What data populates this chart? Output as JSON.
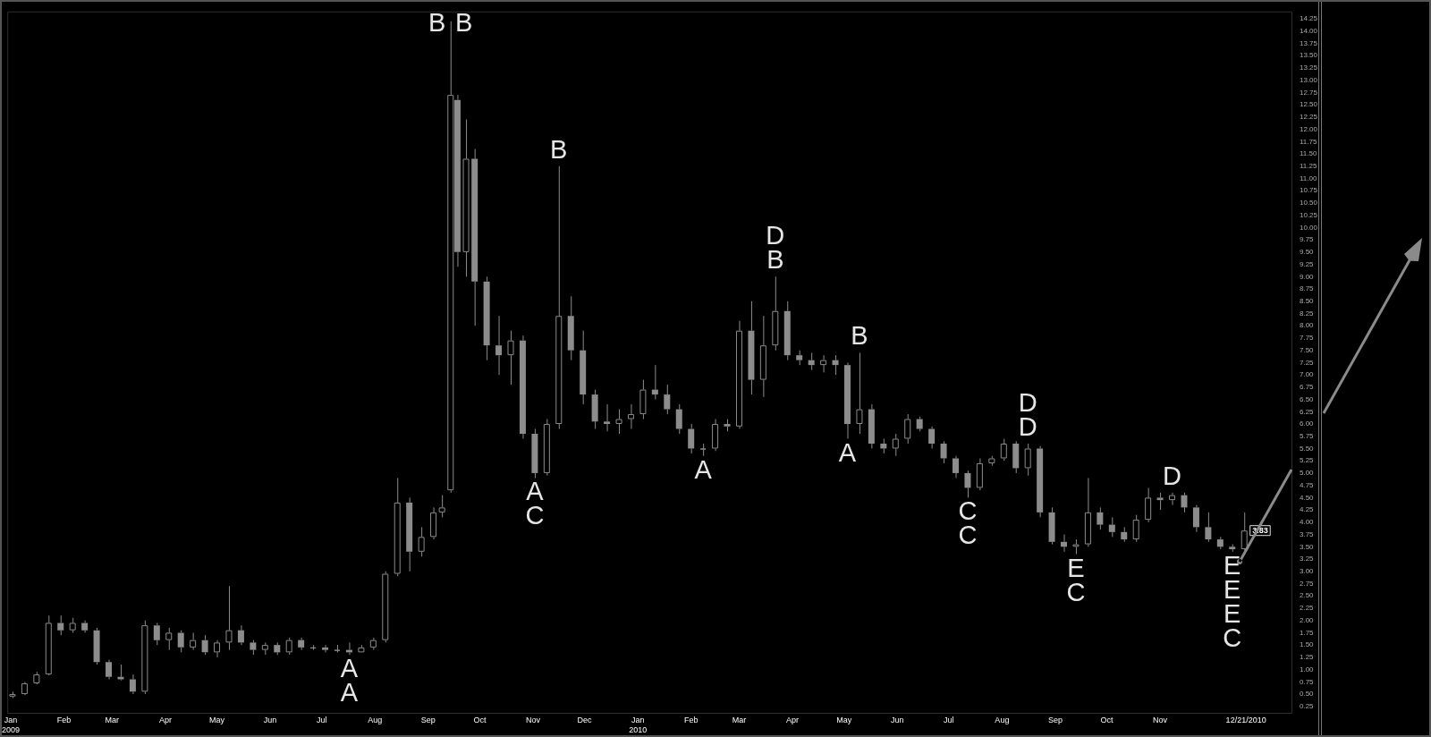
{
  "chart_data": {
    "type": "candlestick",
    "color": "#8c8c8c",
    "grid": false,
    "legend": false,
    "xlim": [
      "2008-12-30",
      "2011-01-17"
    ],
    "xticks": [
      {
        "value": "2009-01-01",
        "label": "Jan\n2009"
      },
      {
        "value": "2009-02-01",
        "label": "Feb"
      },
      {
        "value": "2009-03-01",
        "label": "Mar"
      },
      {
        "value": "2009-04-01",
        "label": "Apr"
      },
      {
        "value": "2009-05-01",
        "label": "May"
      },
      {
        "value": "2009-06-01",
        "label": "Jun"
      },
      {
        "value": "2009-07-01",
        "label": "Jul"
      },
      {
        "value": "2009-08-01",
        "label": "Aug"
      },
      {
        "value": "2009-09-01",
        "label": "Sep"
      },
      {
        "value": "2009-10-01",
        "label": "Oct"
      },
      {
        "value": "2009-11-01",
        "label": "Nov"
      },
      {
        "value": "2009-12-01",
        "label": "Dec"
      },
      {
        "value": "2010-01-01",
        "label": "Jan\n2010"
      },
      {
        "value": "2010-02-01",
        "label": "Feb"
      },
      {
        "value": "2010-03-01",
        "label": "Mar"
      },
      {
        "value": "2010-04-01",
        "label": "Apr"
      },
      {
        "value": "2010-05-01",
        "label": "May"
      },
      {
        "value": "2010-06-01",
        "label": "Jun"
      },
      {
        "value": "2010-07-01",
        "label": "Jul"
      },
      {
        "value": "2010-08-01",
        "label": "Aug"
      },
      {
        "value": "2010-09-01",
        "label": "Sep"
      },
      {
        "value": "2010-10-01",
        "label": "Oct"
      },
      {
        "value": "2010-11-01",
        "label": "Nov"
      },
      {
        "value": "2010-12-21",
        "label": "12/21/2010"
      }
    ],
    "ylim": [
      0.1,
      14.4
    ],
    "yticks": [
      {
        "value": 0.25,
        "label": "0.25"
      },
      {
        "value": 0.5,
        "label": "0.50"
      },
      {
        "value": 0.75,
        "label": "0.75"
      },
      {
        "value": 1,
        "label": "1.00"
      },
      {
        "value": 1.25,
        "label": "1.25"
      },
      {
        "value": 1.5,
        "label": "1.50"
      },
      {
        "value": 1.75,
        "label": "1.75"
      },
      {
        "value": 2,
        "label": "2.00"
      },
      {
        "value": 2.25,
        "label": "2.25"
      },
      {
        "value": 2.5,
        "label": "2.50"
      },
      {
        "value": 2.75,
        "label": "2.75"
      },
      {
        "value": 3,
        "label": "3.00"
      },
      {
        "value": 3.25,
        "label": "3.25"
      },
      {
        "value": 3.5,
        "label": "3.50"
      },
      {
        "value": 3.75,
        "label": "3.75"
      },
      {
        "value": 4,
        "label": "4.00"
      },
      {
        "value": 4.25,
        "label": "4.25"
      },
      {
        "value": 4.5,
        "label": "4.50"
      },
      {
        "value": 4.75,
        "label": "4.75"
      },
      {
        "value": 5,
        "label": "5.00"
      },
      {
        "value": 5.25,
        "label": "5.25"
      },
      {
        "value": 5.5,
        "label": "5.50"
      },
      {
        "value": 5.75,
        "label": "5.75"
      },
      {
        "value": 6,
        "label": "6.00"
      },
      {
        "value": 6.25,
        "label": "6.25"
      },
      {
        "value": 6.5,
        "label": "6.50"
      },
      {
        "value": 6.75,
        "label": "6.75"
      },
      {
        "value": 7,
        "label": "7.00"
      },
      {
        "value": 7.25,
        "label": "7.25"
      },
      {
        "value": 7.5,
        "label": "7.50"
      },
      {
        "value": 7.75,
        "label": "7.75"
      },
      {
        "value": 8,
        "label": "8.00"
      },
      {
        "value": 8.25,
        "label": "8.25"
      },
      {
        "value": 8.5,
        "label": "8.50"
      },
      {
        "value": 8.75,
        "label": "8.75"
      },
      {
        "value": 9,
        "label": "9.00"
      },
      {
        "value": 9.25,
        "label": "9.25"
      },
      {
        "value": 9.5,
        "label": "9.50"
      },
      {
        "value": 9.75,
        "label": "9.75"
      },
      {
        "value": 10,
        "label": "10.00"
      },
      {
        "value": 10.25,
        "label": "10.25"
      },
      {
        "value": 10.5,
        "label": "10.50"
      },
      {
        "value": 10.75,
        "label": "10.75"
      },
      {
        "value": 11,
        "label": "11.00"
      },
      {
        "value": 11.25,
        "label": "11.25"
      },
      {
        "value": 11.5,
        "label": "11.50"
      },
      {
        "value": 11.75,
        "label": "11.75"
      },
      {
        "value": 12,
        "label": "12.00"
      },
      {
        "value": 12.25,
        "label": "12.25"
      },
      {
        "value": 12.5,
        "label": "12.50"
      },
      {
        "value": 12.75,
        "label": "12.75"
      },
      {
        "value": 13,
        "label": "13.00"
      },
      {
        "value": 13.25,
        "label": "13.25"
      },
      {
        "value": 13.5,
        "label": "13.50"
      },
      {
        "value": 13.75,
        "label": "13.75"
      },
      {
        "value": 14,
        "label": "14.00"
      },
      {
        "value": 14.25,
        "label": "14.25"
      }
    ],
    "x": [
      "2009-01-02",
      "2009-01-09",
      "2009-01-16",
      "2009-01-23",
      "2009-01-30",
      "2009-02-06",
      "2009-02-13",
      "2009-02-20",
      "2009-02-27",
      "2009-03-06",
      "2009-03-13",
      "2009-03-20",
      "2009-03-27",
      "2009-04-03",
      "2009-04-10",
      "2009-04-17",
      "2009-04-24",
      "2009-05-01",
      "2009-05-08",
      "2009-05-15",
      "2009-05-22",
      "2009-05-29",
      "2009-06-05",
      "2009-06-12",
      "2009-06-19",
      "2009-06-26",
      "2009-07-03",
      "2009-07-10",
      "2009-07-17",
      "2009-07-24",
      "2009-07-31",
      "2009-08-07",
      "2009-08-14",
      "2009-08-21",
      "2009-08-28",
      "2009-09-04",
      "2009-09-09",
      "2009-09-14",
      "2009-09-18",
      "2009-09-23",
      "2009-09-28",
      "2009-10-05",
      "2009-10-12",
      "2009-10-19",
      "2009-10-26",
      "2009-11-02",
      "2009-11-09",
      "2009-11-16",
      "2009-11-23",
      "2009-11-30",
      "2009-12-07",
      "2009-12-14",
      "2009-12-21",
      "2009-12-28",
      "2010-01-04",
      "2010-01-11",
      "2010-01-18",
      "2010-01-25",
      "2010-02-01",
      "2010-02-08",
      "2010-02-15",
      "2010-02-22",
      "2010-03-01",
      "2010-03-08",
      "2010-03-15",
      "2010-03-22",
      "2010-03-29",
      "2010-04-05",
      "2010-04-12",
      "2010-04-19",
      "2010-04-26",
      "2010-05-03",
      "2010-05-10",
      "2010-05-17",
      "2010-05-24",
      "2010-05-31",
      "2010-06-07",
      "2010-06-14",
      "2010-06-21",
      "2010-06-28",
      "2010-07-05",
      "2010-07-12",
      "2010-07-19",
      "2010-07-26",
      "2010-08-02",
      "2010-08-09",
      "2010-08-16",
      "2010-08-23",
      "2010-08-30",
      "2010-09-06",
      "2010-09-13",
      "2010-09-20",
      "2010-09-27",
      "2010-10-04",
      "2010-10-11",
      "2010-10-18",
      "2010-10-25",
      "2010-11-01",
      "2010-11-08",
      "2010-11-15",
      "2010-11-22",
      "2010-11-29",
      "2010-12-06",
      "2010-12-13",
      "2010-12-20"
    ],
    "ohlc": [
      [
        0.45,
        0.55,
        0.42,
        0.5
      ],
      [
        0.5,
        0.75,
        0.48,
        0.72
      ],
      [
        0.72,
        0.95,
        0.7,
        0.9
      ],
      [
        0.9,
        2.1,
        0.88,
        1.95
      ],
      [
        1.95,
        2.1,
        1.7,
        1.8
      ],
      [
        1.8,
        2.05,
        1.75,
        1.95
      ],
      [
        1.95,
        2,
        1.75,
        1.8
      ],
      [
        1.8,
        1.85,
        1.1,
        1.15
      ],
      [
        1.15,
        1.2,
        0.8,
        0.85
      ],
      [
        0.85,
        1.1,
        0.78,
        0.8
      ],
      [
        0.8,
        0.9,
        0.5,
        0.55
      ],
      [
        0.55,
        2,
        0.5,
        1.9
      ],
      [
        1.9,
        1.95,
        1.5,
        1.6
      ],
      [
        1.6,
        1.85,
        1.4,
        1.75
      ],
      [
        1.75,
        1.8,
        1.35,
        1.45
      ],
      [
        1.45,
        1.75,
        1.4,
        1.6
      ],
      [
        1.6,
        1.7,
        1.3,
        1.35
      ],
      [
        1.35,
        1.6,
        1.25,
        1.55
      ],
      [
        1.55,
        2.7,
        1.4,
        1.8
      ],
      [
        1.8,
        1.9,
        1.5,
        1.55
      ],
      [
        1.55,
        1.6,
        1.3,
        1.4
      ],
      [
        1.4,
        1.55,
        1.3,
        1.5
      ],
      [
        1.5,
        1.55,
        1.3,
        1.35
      ],
      [
        1.35,
        1.65,
        1.3,
        1.6
      ],
      [
        1.6,
        1.65,
        1.4,
        1.45
      ],
      [
        1.45,
        1.5,
        1.4,
        1.45
      ],
      [
        1.45,
        1.5,
        1.35,
        1.4
      ],
      [
        1.4,
        1.5,
        1.35,
        1.4
      ],
      [
        1.4,
        1.55,
        1.3,
        1.35
      ],
      [
        1.35,
        1.5,
        1.35,
        1.45
      ],
      [
        1.45,
        1.65,
        1.4,
        1.6
      ],
      [
        1.6,
        3,
        1.55,
        2.95
      ],
      [
        2.95,
        4.9,
        2.9,
        4.4
      ],
      [
        4.4,
        4.5,
        3,
        3.4
      ],
      [
        3.4,
        3.9,
        3.3,
        3.7
      ],
      [
        3.7,
        4.3,
        3.65,
        4.2
      ],
      [
        4.2,
        4.55,
        4.1,
        4.3
      ],
      [
        4.65,
        14.2,
        4.6,
        12.7
      ],
      [
        12.6,
        12.7,
        9.2,
        9.5
      ],
      [
        9.5,
        12.2,
        9,
        11.4
      ],
      [
        11.4,
        11.6,
        8,
        8.9
      ],
      [
        8.9,
        9,
        7.3,
        7.6
      ],
      [
        7.6,
        8.2,
        7,
        7.4
      ],
      [
        7.4,
        7.9,
        6.8,
        7.7
      ],
      [
        7.7,
        7.8,
        5.7,
        5.8
      ],
      [
        5.8,
        5.9,
        4.9,
        5
      ],
      [
        5,
        6.1,
        4.95,
        6
      ],
      [
        6,
        11.25,
        5.9,
        8.2
      ],
      [
        8.2,
        8.6,
        7.3,
        7.5
      ],
      [
        7.5,
        7.9,
        6.4,
        6.6
      ],
      [
        6.6,
        6.7,
        5.9,
        6.05
      ],
      [
        6.05,
        6.4,
        5.85,
        6
      ],
      [
        6,
        6.3,
        5.8,
        6.1
      ],
      [
        6.1,
        6.4,
        5.9,
        6.2
      ],
      [
        6.2,
        6.9,
        6.1,
        6.7
      ],
      [
        6.7,
        7.2,
        6.5,
        6.6
      ],
      [
        6.6,
        6.8,
        6.2,
        6.3
      ],
      [
        6.3,
        6.4,
        5.8,
        5.9
      ],
      [
        5.9,
        6,
        5.4,
        5.5
      ],
      [
        5.5,
        5.6,
        5.35,
        5.5
      ],
      [
        5.5,
        6.1,
        5.45,
        6
      ],
      [
        6,
        6.1,
        5.85,
        5.95
      ],
      [
        5.95,
        8.1,
        5.9,
        7.9
      ],
      [
        7.9,
        8.5,
        6.6,
        6.9
      ],
      [
        6.9,
        8.2,
        6.55,
        7.6
      ],
      [
        7.6,
        9,
        7.5,
        8.3
      ],
      [
        8.3,
        8.5,
        7.3,
        7.4
      ],
      [
        7.4,
        7.5,
        7.2,
        7.3
      ],
      [
        7.3,
        7.45,
        7.1,
        7.2
      ],
      [
        7.2,
        7.4,
        7.05,
        7.3
      ],
      [
        7.3,
        7.4,
        7,
        7.2
      ],
      [
        7.2,
        7.25,
        5.7,
        6
      ],
      [
        6,
        7.45,
        5.8,
        6.3
      ],
      [
        6.3,
        6.4,
        5.5,
        5.6
      ],
      [
        5.6,
        5.7,
        5.4,
        5.5
      ],
      [
        5.5,
        5.8,
        5.35,
        5.7
      ],
      [
        5.7,
        6.2,
        5.6,
        6.1
      ],
      [
        6.1,
        6.15,
        5.85,
        5.9
      ],
      [
        5.9,
        5.95,
        5.5,
        5.6
      ],
      [
        5.6,
        5.65,
        5.2,
        5.3
      ],
      [
        5.3,
        5.35,
        4.9,
        5
      ],
      [
        5,
        5.05,
        4.5,
        4.7
      ],
      [
        4.7,
        5.3,
        4.65,
        5.2
      ],
      [
        5.2,
        5.35,
        5.15,
        5.3
      ],
      [
        5.3,
        5.7,
        5.25,
        5.6
      ],
      [
        5.6,
        5.65,
        5,
        5.1
      ],
      [
        5.1,
        5.6,
        4.95,
        5.5
      ],
      [
        5.5,
        5.55,
        4.1,
        4.2
      ],
      [
        4.2,
        4.3,
        3.55,
        3.6
      ],
      [
        3.6,
        3.75,
        3.4,
        3.5
      ],
      [
        3.5,
        3.65,
        3.35,
        3.55
      ],
      [
        3.55,
        4.9,
        3.5,
        4.2
      ],
      [
        4.2,
        4.3,
        3.85,
        3.95
      ],
      [
        3.95,
        4.1,
        3.7,
        3.8
      ],
      [
        3.8,
        3.9,
        3.6,
        3.65
      ],
      [
        3.65,
        4.15,
        3.6,
        4.05
      ],
      [
        4.05,
        4.7,
        4,
        4.5
      ],
      [
        4.5,
        4.6,
        4.25,
        4.45
      ],
      [
        4.45,
        4.6,
        4.35,
        4.55
      ],
      [
        4.55,
        4.6,
        4.2,
        4.3
      ],
      [
        4.3,
        4.35,
        3.8,
        3.9
      ],
      [
        3.9,
        4.2,
        3.6,
        3.65
      ],
      [
        3.65,
        3.7,
        3.45,
        3.5
      ],
      [
        3.5,
        3.55,
        3.4,
        3.45
      ],
      [
        3.45,
        4.2,
        3.42,
        3.83
      ]
    ],
    "annotations": [
      {
        "text": "A",
        "x": "2009-07-17",
        "y": 1.3
      },
      {
        "text": "A",
        "x": "2009-07-17",
        "y": 1.3
      },
      {
        "text": "B",
        "x": "2009-09-14",
        "y": 14.2
      },
      {
        "text": "B",
        "x": "2009-09-14",
        "y": 14.2
      },
      {
        "text": "B",
        "x": "2009-11-16",
        "y": 11.25
      },
      {
        "text": "A",
        "x": "2009-11-02",
        "y": 4.9
      },
      {
        "text": "C",
        "x": "2009-11-02",
        "y": 4.9
      },
      {
        "text": "A",
        "x": "2010-02-08",
        "y": 5.35
      },
      {
        "text": "B",
        "x": "2010-03-22",
        "y": 9
      },
      {
        "text": "D",
        "x": "2010-03-22",
        "y": 9
      },
      {
        "text": "B",
        "x": "2010-05-10",
        "y": 7.45
      },
      {
        "text": "A",
        "x": "2010-05-03",
        "y": 5.7
      },
      {
        "text": "C",
        "x": "2010-07-12",
        "y": 4.5
      },
      {
        "text": "C",
        "x": "2010-07-12",
        "y": 4.5
      },
      {
        "text": "D",
        "x": "2010-08-16",
        "y": 5.6
      },
      {
        "text": "D",
        "x": "2010-08-16",
        "y": 5.6
      },
      {
        "text": "E",
        "x": "2010-09-13",
        "y": 3.35
      },
      {
        "text": "C",
        "x": "2010-09-13",
        "y": 3.35
      },
      {
        "text": "D",
        "x": "2010-11-08",
        "y": 4.6
      },
      {
        "text": "E",
        "x": "2010-12-13",
        "y": 3.4
      },
      {
        "text": "E",
        "x": "2010-12-13",
        "y": 3.4
      },
      {
        "text": "E",
        "x": "2010-12-13",
        "y": 3.4
      },
      {
        "text": "C",
        "x": "2010-12-13",
        "y": 3.4
      },
      {
        "text": "3.83",
        "x": "2010-12-20",
        "y": 3.83
      }
    ]
  }
}
